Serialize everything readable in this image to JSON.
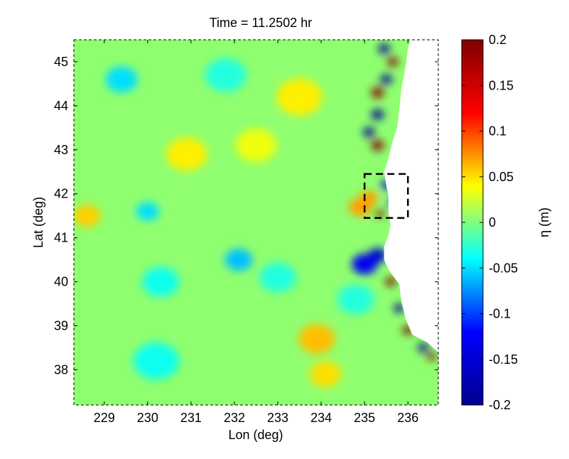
{
  "chart_data": {
    "type": "heatmap",
    "title": "Time = 11.2502 hr",
    "xlabel": "Lon (deg)",
    "ylabel": "Lat (deg)",
    "colorbar_label": "η (m)",
    "xlim": [
      228.3,
      236.7
    ],
    "ylim": [
      37.2,
      45.5
    ],
    "xticks": [
      229,
      230,
      231,
      232,
      233,
      234,
      235,
      236
    ],
    "yticks": [
      38,
      39,
      40,
      41,
      42,
      43,
      44,
      45
    ],
    "color_range": [
      -0.2,
      0.2
    ],
    "colorbar_ticks": [
      {
        "value": 0.2,
        "label": "0.2"
      },
      {
        "value": 0.15,
        "label": "0.15"
      },
      {
        "value": 0.1,
        "label": "0.1"
      },
      {
        "value": 0.05,
        "label": "0.05"
      },
      {
        "value": 0,
        "label": "0"
      },
      {
        "value": -0.05,
        "label": "-0.05"
      },
      {
        "value": -0.1,
        "label": "-0.1"
      },
      {
        "value": -0.15,
        "label": "-0.15"
      },
      {
        "value": -0.2,
        "label": "-0.2"
      }
    ],
    "colormap": "jet",
    "colormap_stops": [
      "#00008f",
      "#0000ff",
      "#00ffff",
      "#ffff00",
      "#ff0000",
      "#800000"
    ],
    "inset_box": {
      "lon": [
        235.0,
        236.0
      ],
      "lat": [
        41.45,
        42.45
      ]
    },
    "coastline": [
      [
        236.7,
        38.4
      ],
      [
        236.45,
        38.62
      ],
      [
        236.1,
        38.8
      ],
      [
        235.95,
        39.15
      ],
      [
        235.85,
        39.55
      ],
      [
        235.8,
        39.95
      ],
      [
        235.55,
        40.28
      ],
      [
        235.45,
        40.5
      ],
      [
        235.45,
        40.8
      ],
      [
        235.55,
        41.05
      ],
      [
        235.6,
        41.3
      ],
      [
        235.55,
        41.6
      ],
      [
        235.55,
        41.95
      ],
      [
        235.5,
        42.2
      ],
      [
        235.45,
        42.5
      ],
      [
        235.55,
        42.8
      ],
      [
        235.65,
        43.2
      ],
      [
        235.75,
        43.5
      ],
      [
        235.8,
        43.9
      ],
      [
        235.85,
        44.4
      ],
      [
        235.95,
        44.9
      ],
      [
        236.0,
        45.3
      ],
      [
        236.05,
        45.5
      ]
    ],
    "anomalies": [
      {
        "lon": 228.6,
        "lat": 41.5,
        "eta": 0.055,
        "r": 0.3
      },
      {
        "lon": 229.4,
        "lat": 44.6,
        "eta": -0.05,
        "r": 0.35
      },
      {
        "lon": 230.0,
        "lat": 41.6,
        "eta": -0.05,
        "r": 0.25
      },
      {
        "lon": 230.3,
        "lat": 40.0,
        "eta": -0.035,
        "r": 0.4
      },
      {
        "lon": 230.2,
        "lat": 38.2,
        "eta": -0.035,
        "r": 0.5
      },
      {
        "lon": 230.9,
        "lat": 42.9,
        "eta": 0.045,
        "r": 0.45
      },
      {
        "lon": 232.1,
        "lat": 40.5,
        "eta": -0.06,
        "r": 0.3
      },
      {
        "lon": 232.5,
        "lat": 43.1,
        "eta": 0.035,
        "r": 0.45
      },
      {
        "lon": 231.8,
        "lat": 44.7,
        "eta": -0.03,
        "r": 0.45
      },
      {
        "lon": 233.5,
        "lat": 44.2,
        "eta": 0.045,
        "r": 0.5
      },
      {
        "lon": 233.9,
        "lat": 38.7,
        "eta": 0.06,
        "r": 0.4
      },
      {
        "lon": 234.1,
        "lat": 37.9,
        "eta": 0.05,
        "r": 0.35
      },
      {
        "lon": 233.0,
        "lat": 40.1,
        "eta": -0.03,
        "r": 0.4
      },
      {
        "lon": 234.9,
        "lat": 41.7,
        "eta": 0.07,
        "r": 0.25
      },
      {
        "lon": 235.1,
        "lat": 41.9,
        "eta": 0.07,
        "r": 0.2
      },
      {
        "lon": 235.0,
        "lat": 40.4,
        "eta": -0.13,
        "r": 0.28
      },
      {
        "lon": 235.3,
        "lat": 40.6,
        "eta": -0.15,
        "r": 0.2
      },
      {
        "lon": 234.8,
        "lat": 39.6,
        "eta": -0.03,
        "r": 0.4
      },
      {
        "lon": 235.6,
        "lat": 40.0,
        "eta": 0.25,
        "r": 0.12
      },
      {
        "lon": 235.8,
        "lat": 39.4,
        "eta": -0.2,
        "r": 0.12
      },
      {
        "lon": 236.0,
        "lat": 38.9,
        "eta": 0.25,
        "r": 0.12
      },
      {
        "lon": 236.35,
        "lat": 38.5,
        "eta": -0.2,
        "r": 0.12
      },
      {
        "lon": 236.55,
        "lat": 38.3,
        "eta": 0.25,
        "r": 0.1
      },
      {
        "lon": 235.3,
        "lat": 43.1,
        "eta": 0.25,
        "r": 0.14
      },
      {
        "lon": 235.1,
        "lat": 43.4,
        "eta": -0.2,
        "r": 0.13
      },
      {
        "lon": 235.3,
        "lat": 43.8,
        "eta": -0.22,
        "r": 0.14
      },
      {
        "lon": 235.3,
        "lat": 44.3,
        "eta": 0.25,
        "r": 0.14
      },
      {
        "lon": 235.5,
        "lat": 44.6,
        "eta": -0.2,
        "r": 0.13
      },
      {
        "lon": 235.65,
        "lat": 45.0,
        "eta": 0.25,
        "r": 0.12
      },
      {
        "lon": 235.45,
        "lat": 45.3,
        "eta": -0.22,
        "r": 0.13
      },
      {
        "lon": 235.5,
        "lat": 42.2,
        "eta": -0.15,
        "r": 0.12
      },
      {
        "lon": 235.35,
        "lat": 41.55,
        "eta": 0.22,
        "r": 0.1
      },
      {
        "lon": 235.6,
        "lat": 41.8,
        "eta": -0.15,
        "r": 0.08
      }
    ]
  }
}
